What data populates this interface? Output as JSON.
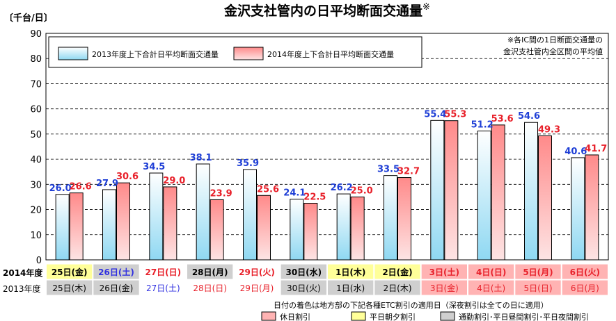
{
  "chart_data": {
    "type": "bar",
    "title": "金沢支社管内の日平均断面交通量",
    "title_mark": "※",
    "ylabel": "〔千台/日〕",
    "ylim": [
      0,
      90
    ],
    "yticks": [
      0,
      10,
      20,
      30,
      40,
      50,
      60,
      70,
      80,
      90
    ],
    "grid": true,
    "legend_position": "top-left",
    "note_lines": [
      "※各IC間の1日断面交通量の",
      "金沢支社管内全区間の平均値"
    ],
    "series": [
      {
        "name": "2013年度上下合計日平均断面交通量",
        "values": [
          26.0,
          27.9,
          34.5,
          38.1,
          35.9,
          24.1,
          26.2,
          33.5,
          55.4,
          51.2,
          54.6,
          40.6
        ],
        "fill_top": "#ffffff",
        "fill_bottom": "#8fd8f2",
        "label_color": "#1f3fd6"
      },
      {
        "name": "2014年度上下合計日平均断面交通量",
        "values": [
          26.6,
          30.6,
          29.0,
          23.9,
          25.6,
          22.5,
          25.0,
          32.7,
          55.3,
          53.6,
          49.3,
          41.7
        ],
        "fill_top": "#ff8a8a",
        "fill_bottom": "#fde4e4",
        "label_color": "#e8202a"
      }
    ],
    "value_labels": [
      [
        "26.0",
        "27.9",
        "34.5",
        "38.1",
        "35.9",
        "24.1",
        "26.2",
        "33.5",
        "55.4",
        "51.2",
        "54.6",
        "40.6"
      ],
      [
        "26.6",
        "30.6",
        "29.0",
        "23.9",
        "25.6",
        "22.5",
        "25.0",
        "32.7",
        "55.3",
        "53.6",
        "49.3",
        "41.7"
      ]
    ],
    "table": {
      "row_labels": [
        "2014年度",
        "2013年度"
      ],
      "rows": [
        [
          {
            "text": "25日(金)",
            "bg": "#ffff99",
            "color": "#000000"
          },
          {
            "text": "26日(土)",
            "bg": "#cfcfcf",
            "color": "#3030e0"
          },
          {
            "text": "27日(日)",
            "bg": "#ffffff",
            "color": "#e8202a"
          },
          {
            "text": "28日(月)",
            "bg": "#cfcfcf",
            "color": "#000000"
          },
          {
            "text": "29日(火)",
            "bg": "#ffffff",
            "color": "#e8202a"
          },
          {
            "text": "30日(水)",
            "bg": "#cfcfcf",
            "color": "#000000"
          },
          {
            "text": "1日(木)",
            "bg": "#ffff99",
            "color": "#000000"
          },
          {
            "text": "2日(金)",
            "bg": "#ffff99",
            "color": "#000000"
          },
          {
            "text": "3日(土)",
            "bg": "#ffb3b3",
            "color": "#e8202a"
          },
          {
            "text": "4日(日)",
            "bg": "#ffb3b3",
            "color": "#e8202a"
          },
          {
            "text": "5日(月)",
            "bg": "#ffb3b3",
            "color": "#e8202a"
          },
          {
            "text": "6日(火)",
            "bg": "#ffb3b3",
            "color": "#e8202a"
          }
        ],
        [
          {
            "text": "25日(木)",
            "bg": "#cfcfcf",
            "color": "#000000"
          },
          {
            "text": "26日(金)",
            "bg": "#cfcfcf",
            "color": "#000000"
          },
          {
            "text": "27日(土)",
            "bg": "#ffffff",
            "color": "#3030e0"
          },
          {
            "text": "28日(日)",
            "bg": "#ffffff",
            "color": "#e8202a"
          },
          {
            "text": "29日(月)",
            "bg": "#ffffff",
            "color": "#e8202a"
          },
          {
            "text": "30日(火)",
            "bg": "#cfcfcf",
            "color": "#000000"
          },
          {
            "text": "1日(水)",
            "bg": "#cfcfcf",
            "color": "#000000"
          },
          {
            "text": "2日(木)",
            "bg": "#cfcfcf",
            "color": "#000000"
          },
          {
            "text": "3日(金)",
            "bg": "#ffb3b3",
            "color": "#e8202a"
          },
          {
            "text": "4日(土)",
            "bg": "#ffb3b3",
            "color": "#e8202a"
          },
          {
            "text": "5日(日)",
            "bg": "#ffb3b3",
            "color": "#e8202a"
          },
          {
            "text": "6日(月)",
            "bg": "#ffb3b3",
            "color": "#e8202a"
          }
        ]
      ]
    },
    "footnote": {
      "text": "日付の着色は地方部の下記各種ETC割引の適用日（深夜割引は全ての日に適用）",
      "items": [
        {
          "label": "休日割引",
          "color": "#ffb3b3"
        },
        {
          "label": "平日朝夕割引",
          "color": "#ffff99"
        },
        {
          "label": "通勤割引･平日昼間割引･平日夜間割引",
          "color": "#cfcfcf"
        }
      ]
    }
  }
}
